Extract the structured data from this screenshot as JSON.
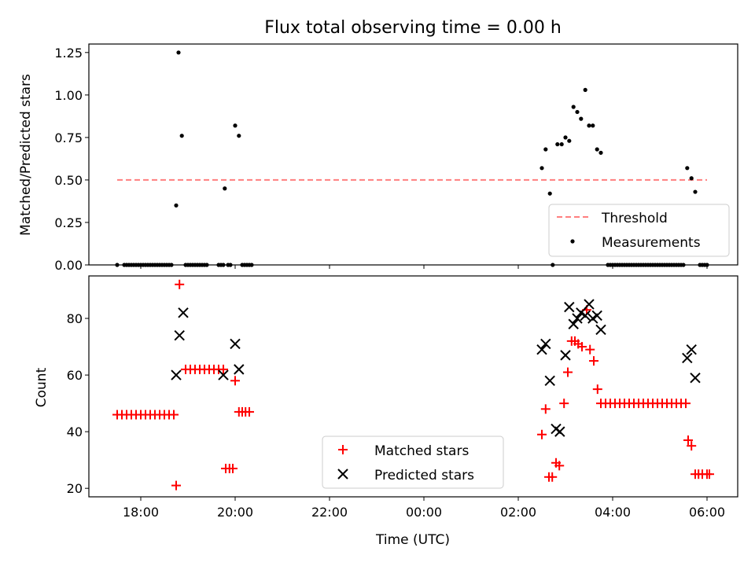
{
  "chart_data": [
    {
      "type": "scatter",
      "title": "Flux total observing time = 0.00 h",
      "xlabel": "",
      "ylabel": "Matched/Predicted stars",
      "ylim": [
        0,
        1.3
      ],
      "yticks": [
        "0.00",
        "0.25",
        "0.50",
        "0.75",
        "1.00",
        "1.25"
      ],
      "ytick_values": [
        0,
        0.25,
        0.5,
        0.75,
        1.0,
        1.25
      ],
      "threshold": {
        "name": "Threshold",
        "value": 0.5,
        "x_start": -6.5,
        "x_end": 6.0,
        "color": "#ff7f7f"
      },
      "legend": {
        "position": "lower-right",
        "entries": [
          "Threshold",
          "Measurements"
        ]
      },
      "series": [
        {
          "name": "Measurements",
          "color": "#000000",
          "points": [
            [
              -6.5,
              0
            ],
            [
              -6.35,
              0
            ],
            [
              -6.3,
              0
            ],
            [
              -6.25,
              0
            ],
            [
              -6.2,
              0
            ],
            [
              -6.15,
              0
            ],
            [
              -6.1,
              0
            ],
            [
              -6.05,
              0
            ],
            [
              -6.0,
              0
            ],
            [
              -5.95,
              0
            ],
            [
              -5.9,
              0
            ],
            [
              -5.85,
              0
            ],
            [
              -5.8,
              0
            ],
            [
              -5.75,
              0
            ],
            [
              -5.7,
              0
            ],
            [
              -5.65,
              0
            ],
            [
              -5.6,
              0
            ],
            [
              -5.55,
              0
            ],
            [
              -5.5,
              0
            ],
            [
              -5.45,
              0
            ],
            [
              -5.4,
              0
            ],
            [
              -5.35,
              0
            ],
            [
              -5.25,
              0.35
            ],
            [
              -5.2,
              1.25
            ],
            [
              -5.13,
              0.76
            ],
            [
              -5.05,
              0
            ],
            [
              -5.0,
              0
            ],
            [
              -4.95,
              0
            ],
            [
              -4.9,
              0
            ],
            [
              -4.85,
              0
            ],
            [
              -4.8,
              0
            ],
            [
              -4.75,
              0
            ],
            [
              -4.7,
              0
            ],
            [
              -4.65,
              0
            ],
            [
              -4.6,
              0
            ],
            [
              -4.35,
              0
            ],
            [
              -4.3,
              0
            ],
            [
              -4.25,
              0
            ],
            [
              -4.22,
              0.45
            ],
            [
              -4.15,
              0
            ],
            [
              -4.1,
              0
            ],
            [
              -4.0,
              0.82
            ],
            [
              -3.92,
              0.76
            ],
            [
              -3.85,
              0
            ],
            [
              -3.8,
              0
            ],
            [
              -3.75,
              0
            ],
            [
              -3.7,
              0
            ],
            [
              -3.65,
              0
            ],
            [
              2.5,
              0.57
            ],
            [
              2.58,
              0.68
            ],
            [
              2.67,
              0.42
            ],
            [
              2.73,
              0
            ],
            [
              2.83,
              0.71
            ],
            [
              2.92,
              0.71
            ],
            [
              3.0,
              0.75
            ],
            [
              3.08,
              0.73
            ],
            [
              3.17,
              0.93
            ],
            [
              3.25,
              0.9
            ],
            [
              3.33,
              0.86
            ],
            [
              3.42,
              1.03
            ],
            [
              3.5,
              0.82
            ],
            [
              3.58,
              0.82
            ],
            [
              3.67,
              0.68
            ],
            [
              3.75,
              0.66
            ],
            [
              3.9,
              0
            ],
            [
              3.95,
              0
            ],
            [
              4.0,
              0
            ],
            [
              4.05,
              0
            ],
            [
              4.1,
              0
            ],
            [
              4.15,
              0
            ],
            [
              4.2,
              0
            ],
            [
              4.25,
              0
            ],
            [
              4.3,
              0
            ],
            [
              4.35,
              0
            ],
            [
              4.4,
              0
            ],
            [
              4.45,
              0
            ],
            [
              4.5,
              0
            ],
            [
              4.55,
              0
            ],
            [
              4.6,
              0
            ],
            [
              4.65,
              0
            ],
            [
              4.7,
              0
            ],
            [
              4.75,
              0
            ],
            [
              4.8,
              0
            ],
            [
              4.85,
              0
            ],
            [
              4.9,
              0
            ],
            [
              4.95,
              0
            ],
            [
              5.0,
              0
            ],
            [
              5.05,
              0
            ],
            [
              5.1,
              0
            ],
            [
              5.15,
              0
            ],
            [
              5.2,
              0
            ],
            [
              5.25,
              0
            ],
            [
              5.3,
              0
            ],
            [
              5.35,
              0
            ],
            [
              5.4,
              0
            ],
            [
              5.45,
              0
            ],
            [
              5.5,
              0
            ],
            [
              5.58,
              0.57
            ],
            [
              5.67,
              0.51
            ],
            [
              5.75,
              0.43
            ],
            [
              5.85,
              0
            ],
            [
              5.9,
              0
            ],
            [
              5.95,
              0
            ],
            [
              6.0,
              0
            ]
          ]
        }
      ]
    },
    {
      "type": "scatter",
      "title": "",
      "xlabel": "Time (UTC)",
      "ylabel": "Count",
      "ylim": [
        17,
        95
      ],
      "yticks": [
        "20",
        "40",
        "60",
        "80"
      ],
      "ytick_values": [
        20,
        40,
        60,
        80
      ],
      "xlim": [
        -7.1,
        6.65
      ],
      "xtick_values": [
        -6,
        -4,
        -2,
        0,
        2,
        4,
        6
      ],
      "xticks": [
        "18:00",
        "20:00",
        "22:00",
        "00:00",
        "02:00",
        "04:00",
        "06:00"
      ],
      "legend": {
        "position": "lower-center",
        "entries": [
          "Matched stars",
          "Predicted stars"
        ]
      },
      "series": [
        {
          "name": "Matched stars",
          "marker": "plus",
          "color": "#ff0000",
          "points": [
            [
              -6.5,
              46
            ],
            [
              -6.4,
              46
            ],
            [
              -6.3,
              46
            ],
            [
              -6.2,
              46
            ],
            [
              -6.1,
              46
            ],
            [
              -6.0,
              46
            ],
            [
              -5.9,
              46
            ],
            [
              -5.8,
              46
            ],
            [
              -5.7,
              46
            ],
            [
              -5.6,
              46
            ],
            [
              -5.5,
              46
            ],
            [
              -5.4,
              46
            ],
            [
              -5.3,
              46
            ],
            [
              -5.25,
              21
            ],
            [
              -5.18,
              92
            ],
            [
              -5.05,
              62
            ],
            [
              -4.95,
              62
            ],
            [
              -4.85,
              62
            ],
            [
              -4.75,
              62
            ],
            [
              -4.65,
              62
            ],
            [
              -4.55,
              62
            ],
            [
              -4.45,
              62
            ],
            [
              -4.35,
              62
            ],
            [
              -4.25,
              62
            ],
            [
              -4.2,
              27
            ],
            [
              -4.12,
              27
            ],
            [
              -4.05,
              27
            ],
            [
              -4.0,
              58
            ],
            [
              -3.92,
              47
            ],
            [
              -3.85,
              47
            ],
            [
              -3.78,
              47
            ],
            [
              -3.7,
              47
            ],
            [
              2.5,
              39
            ],
            [
              2.58,
              48
            ],
            [
              2.65,
              24
            ],
            [
              2.72,
              24
            ],
            [
              2.8,
              29
            ],
            [
              2.87,
              28
            ],
            [
              2.97,
              50
            ],
            [
              3.05,
              61
            ],
            [
              3.13,
              72
            ],
            [
              3.2,
              72
            ],
            [
              3.27,
              71
            ],
            [
              3.35,
              70
            ],
            [
              3.45,
              83
            ],
            [
              3.52,
              69
            ],
            [
              3.6,
              65
            ],
            [
              3.68,
              55
            ],
            [
              3.75,
              50
            ],
            [
              3.85,
              50
            ],
            [
              3.95,
              50
            ],
            [
              4.05,
              50
            ],
            [
              4.15,
              50
            ],
            [
              4.25,
              50
            ],
            [
              4.35,
              50
            ],
            [
              4.45,
              50
            ],
            [
              4.55,
              50
            ],
            [
              4.65,
              50
            ],
            [
              4.75,
              50
            ],
            [
              4.85,
              50
            ],
            [
              4.95,
              50
            ],
            [
              5.05,
              50
            ],
            [
              5.15,
              50
            ],
            [
              5.25,
              50
            ],
            [
              5.35,
              50
            ],
            [
              5.45,
              50
            ],
            [
              5.55,
              50
            ],
            [
              5.6,
              37
            ],
            [
              5.67,
              35
            ],
            [
              5.75,
              25
            ],
            [
              5.82,
              25
            ],
            [
              5.9,
              25
            ],
            [
              6.0,
              25
            ],
            [
              6.05,
              25
            ]
          ]
        },
        {
          "name": "Predicted stars",
          "marker": "x",
          "color": "#000000",
          "points": [
            [
              -5.25,
              60
            ],
            [
              -5.18,
              74
            ],
            [
              -5.1,
              82
            ],
            [
              -4.25,
              60
            ],
            [
              -4.0,
              71
            ],
            [
              -3.92,
              62
            ],
            [
              2.5,
              69
            ],
            [
              2.58,
              71
            ],
            [
              2.67,
              58
            ],
            [
              2.8,
              41
            ],
            [
              2.88,
              40
            ],
            [
              3.0,
              67
            ],
            [
              3.08,
              84
            ],
            [
              3.17,
              78
            ],
            [
              3.25,
              80
            ],
            [
              3.33,
              82
            ],
            [
              3.42,
              81
            ],
            [
              3.5,
              85
            ],
            [
              3.58,
              80
            ],
            [
              3.67,
              81
            ],
            [
              3.75,
              76
            ],
            [
              5.58,
              66
            ],
            [
              5.67,
              69
            ],
            [
              5.75,
              59
            ]
          ]
        }
      ]
    }
  ]
}
